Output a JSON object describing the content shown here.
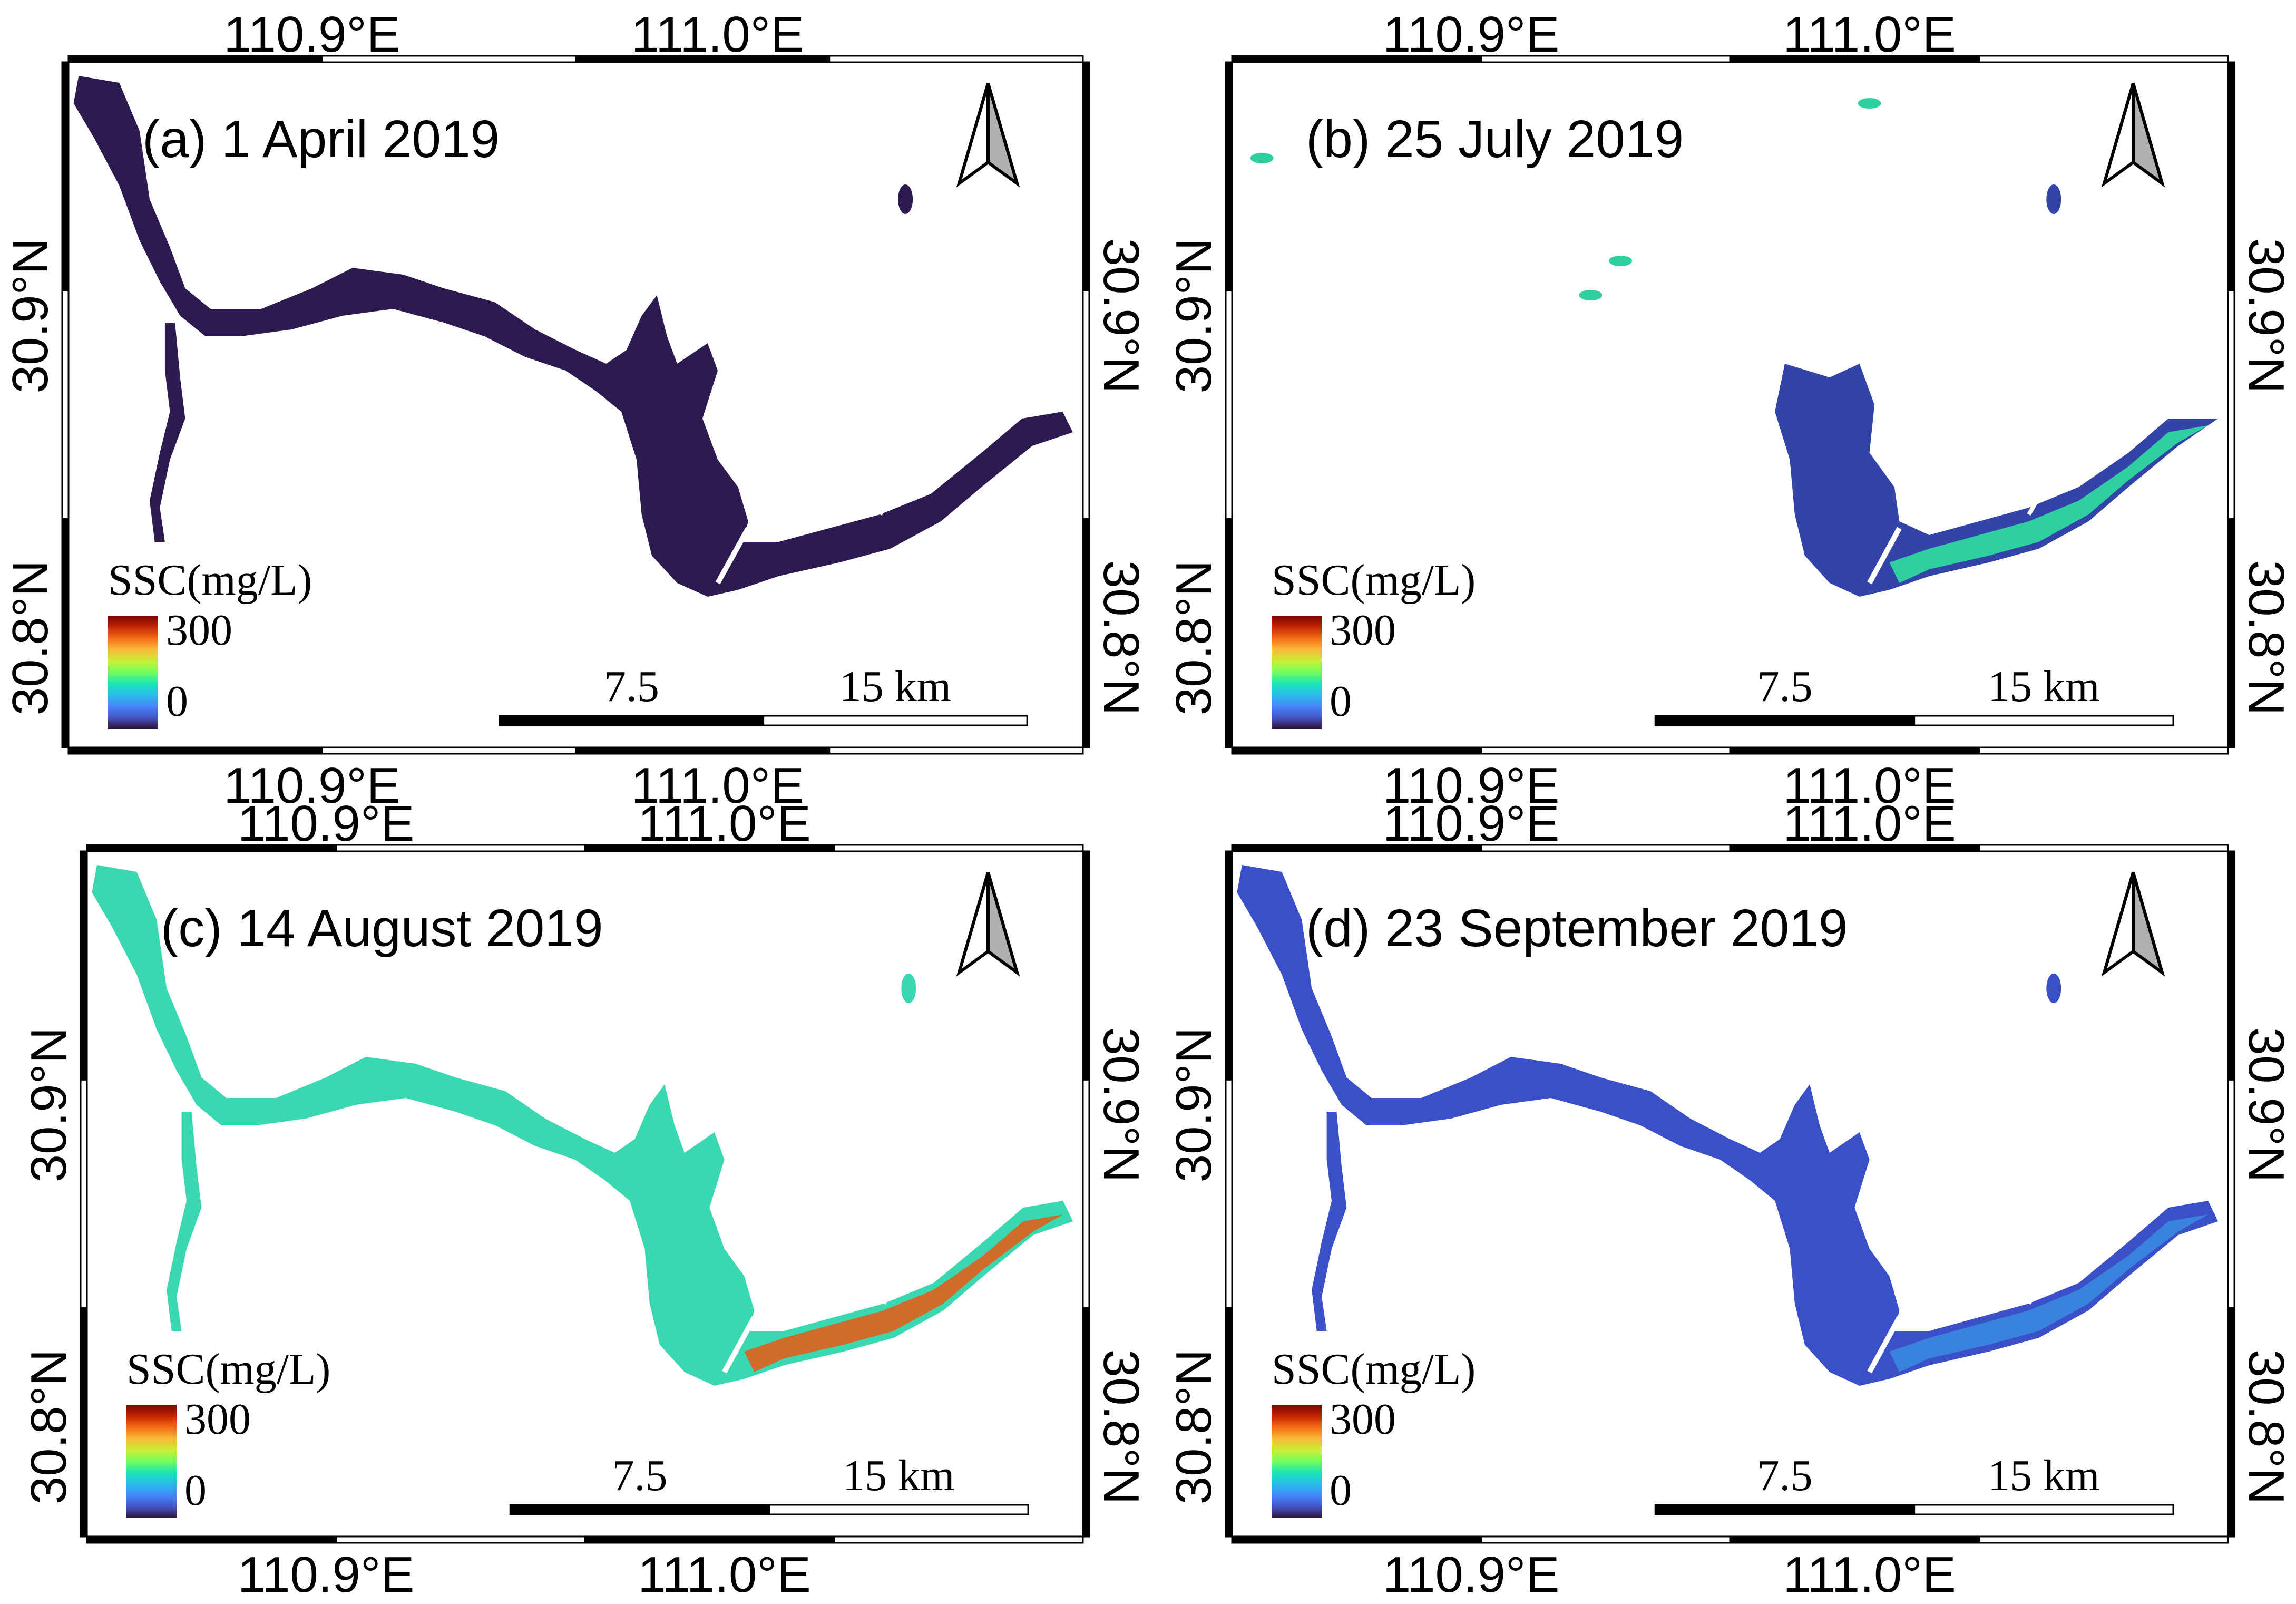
{
  "panels": [
    {
      "id": "a",
      "title": "(a) 1 April 2019",
      "lon_labels": [
        "110.9°E",
        "111.0°E"
      ],
      "lat_labels": [
        "30.9°N",
        "30.8°N"
      ],
      "legend": {
        "title": "SSC(mg/L)",
        "max": "300",
        "min": "0"
      },
      "scale_bar": {
        "mid": "7.5",
        "end": "15 km"
      },
      "water_color": "#2d1a50",
      "accent_color": "#2d1a50",
      "variant": "full"
    },
    {
      "id": "b",
      "title": "(b) 25 July 2019",
      "lon_labels": [
        "110.9°E",
        "111.0°E"
      ],
      "lat_labels": [
        "30.9°N",
        "30.8°N"
      ],
      "legend": {
        "title": "SSC(mg/L)",
        "max": "300",
        "min": "0"
      },
      "scale_bar": {
        "mid": "7.5",
        "end": "15 km"
      },
      "water_color": "#3344a8",
      "accent_color": "#2fd0a0",
      "variant": "partial"
    },
    {
      "id": "c",
      "title": "(c) 14 August 2019",
      "lon_labels": [
        "110.9°E",
        "111.0°E"
      ],
      "lat_labels": [
        "30.9°N",
        "30.8°N"
      ],
      "legend": {
        "title": "SSC(mg/L)",
        "max": "300",
        "min": "0"
      },
      "scale_bar": {
        "mid": "7.5",
        "end": "15 km"
      },
      "water_color": "#3ad8b0",
      "accent_color": "#e0601e",
      "variant": "full"
    },
    {
      "id": "d",
      "title": "(d) 23 September 2019",
      "lon_labels": [
        "110.9°E",
        "111.0°E"
      ],
      "lat_labels": [
        "30.9°N",
        "30.8°N"
      ],
      "legend": {
        "title": "SSC(mg/L)",
        "max": "300",
        "min": "0"
      },
      "scale_bar": {
        "mid": "7.5",
        "end": "15 km"
      },
      "water_color": "#3a4fc8",
      "accent_color": "#3a88e0",
      "variant": "full"
    }
  ],
  "colormap": [
    "#7a0403",
    "#c42503",
    "#f46d15",
    "#faba39",
    "#c8ef34",
    "#72fe5e",
    "#1ae4b6",
    "#28bceb",
    "#4686fb",
    "#4454c4",
    "#30123b"
  ],
  "north_arrow": {
    "icon": "north-arrow-icon"
  }
}
